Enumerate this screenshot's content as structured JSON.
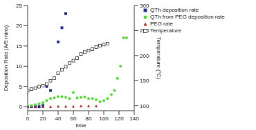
{
  "chart_data": {
    "type": "scatter",
    "x_label": "time",
    "y_label": "Deposition Rate (A/5 mins)",
    "y2_label": "Temperature (°C)",
    "xlim": [
      0,
      140
    ],
    "xticks": [
      0,
      20,
      40,
      60,
      80,
      100,
      120,
      140
    ],
    "ylim": [
      -1,
      25
    ],
    "yticks": [
      0,
      5,
      10,
      15,
      20,
      25
    ],
    "y2lim": [
      90,
      300
    ],
    "y2ticks": [
      100,
      150,
      200,
      250,
      300
    ],
    "grid": false,
    "legend": "upper right",
    "series": [
      {
        "name": "QTh deposition rate",
        "color": "#283593",
        "marker": "square",
        "x": [
          0,
          5,
          10,
          15,
          20,
          25,
          30,
          40,
          45,
          50
        ],
        "values": [
          0,
          0,
          0,
          0,
          0.3,
          5,
          4,
          16,
          19.5,
          23
        ]
      },
      {
        "name": "QTh from PEG deposition rate",
        "color": "#55dd33",
        "marker": "circle",
        "x": [
          0,
          5,
          10,
          15,
          20,
          25,
          30,
          35,
          40,
          45,
          50,
          55,
          60,
          65,
          70,
          75,
          80,
          85,
          90,
          95,
          100,
          105,
          110,
          114,
          118,
          122,
          126,
          130
        ],
        "values": [
          0.2,
          0.3,
          0.5,
          0.7,
          1,
          1.5,
          2,
          2.2,
          2.5,
          2.5,
          2.3,
          2,
          3.5,
          2.2,
          2.3,
          2.4,
          2,
          2,
          1.7,
          1.2,
          1.5,
          2,
          3,
          4,
          7,
          10,
          17,
          17
        ]
      },
      {
        "name": "PEG rate",
        "color": "#c62828",
        "marker": "triangle",
        "x": [
          0,
          10,
          20,
          30,
          40,
          50,
          60,
          70,
          80,
          90
        ],
        "values": [
          0,
          0,
          0,
          0,
          0.1,
          0.1,
          0.1,
          0.2,
          0.2,
          0.2
        ]
      },
      {
        "name": "Temperature",
        "color": "#333333",
        "marker": "square_open",
        "axis": "y2",
        "x": [
          0,
          5,
          10,
          15,
          20,
          25,
          30,
          35,
          40,
          45,
          50,
          55,
          60,
          65,
          70,
          75,
          80,
          85,
          90,
          95,
          100,
          105
        ],
        "values": [
          130,
          133,
          135,
          138,
          140,
          143,
          150,
          155,
          165,
          172,
          178,
          185,
          190,
          195,
          203,
          207,
          210,
          213,
          217,
          220,
          222,
          224
        ]
      }
    ]
  }
}
